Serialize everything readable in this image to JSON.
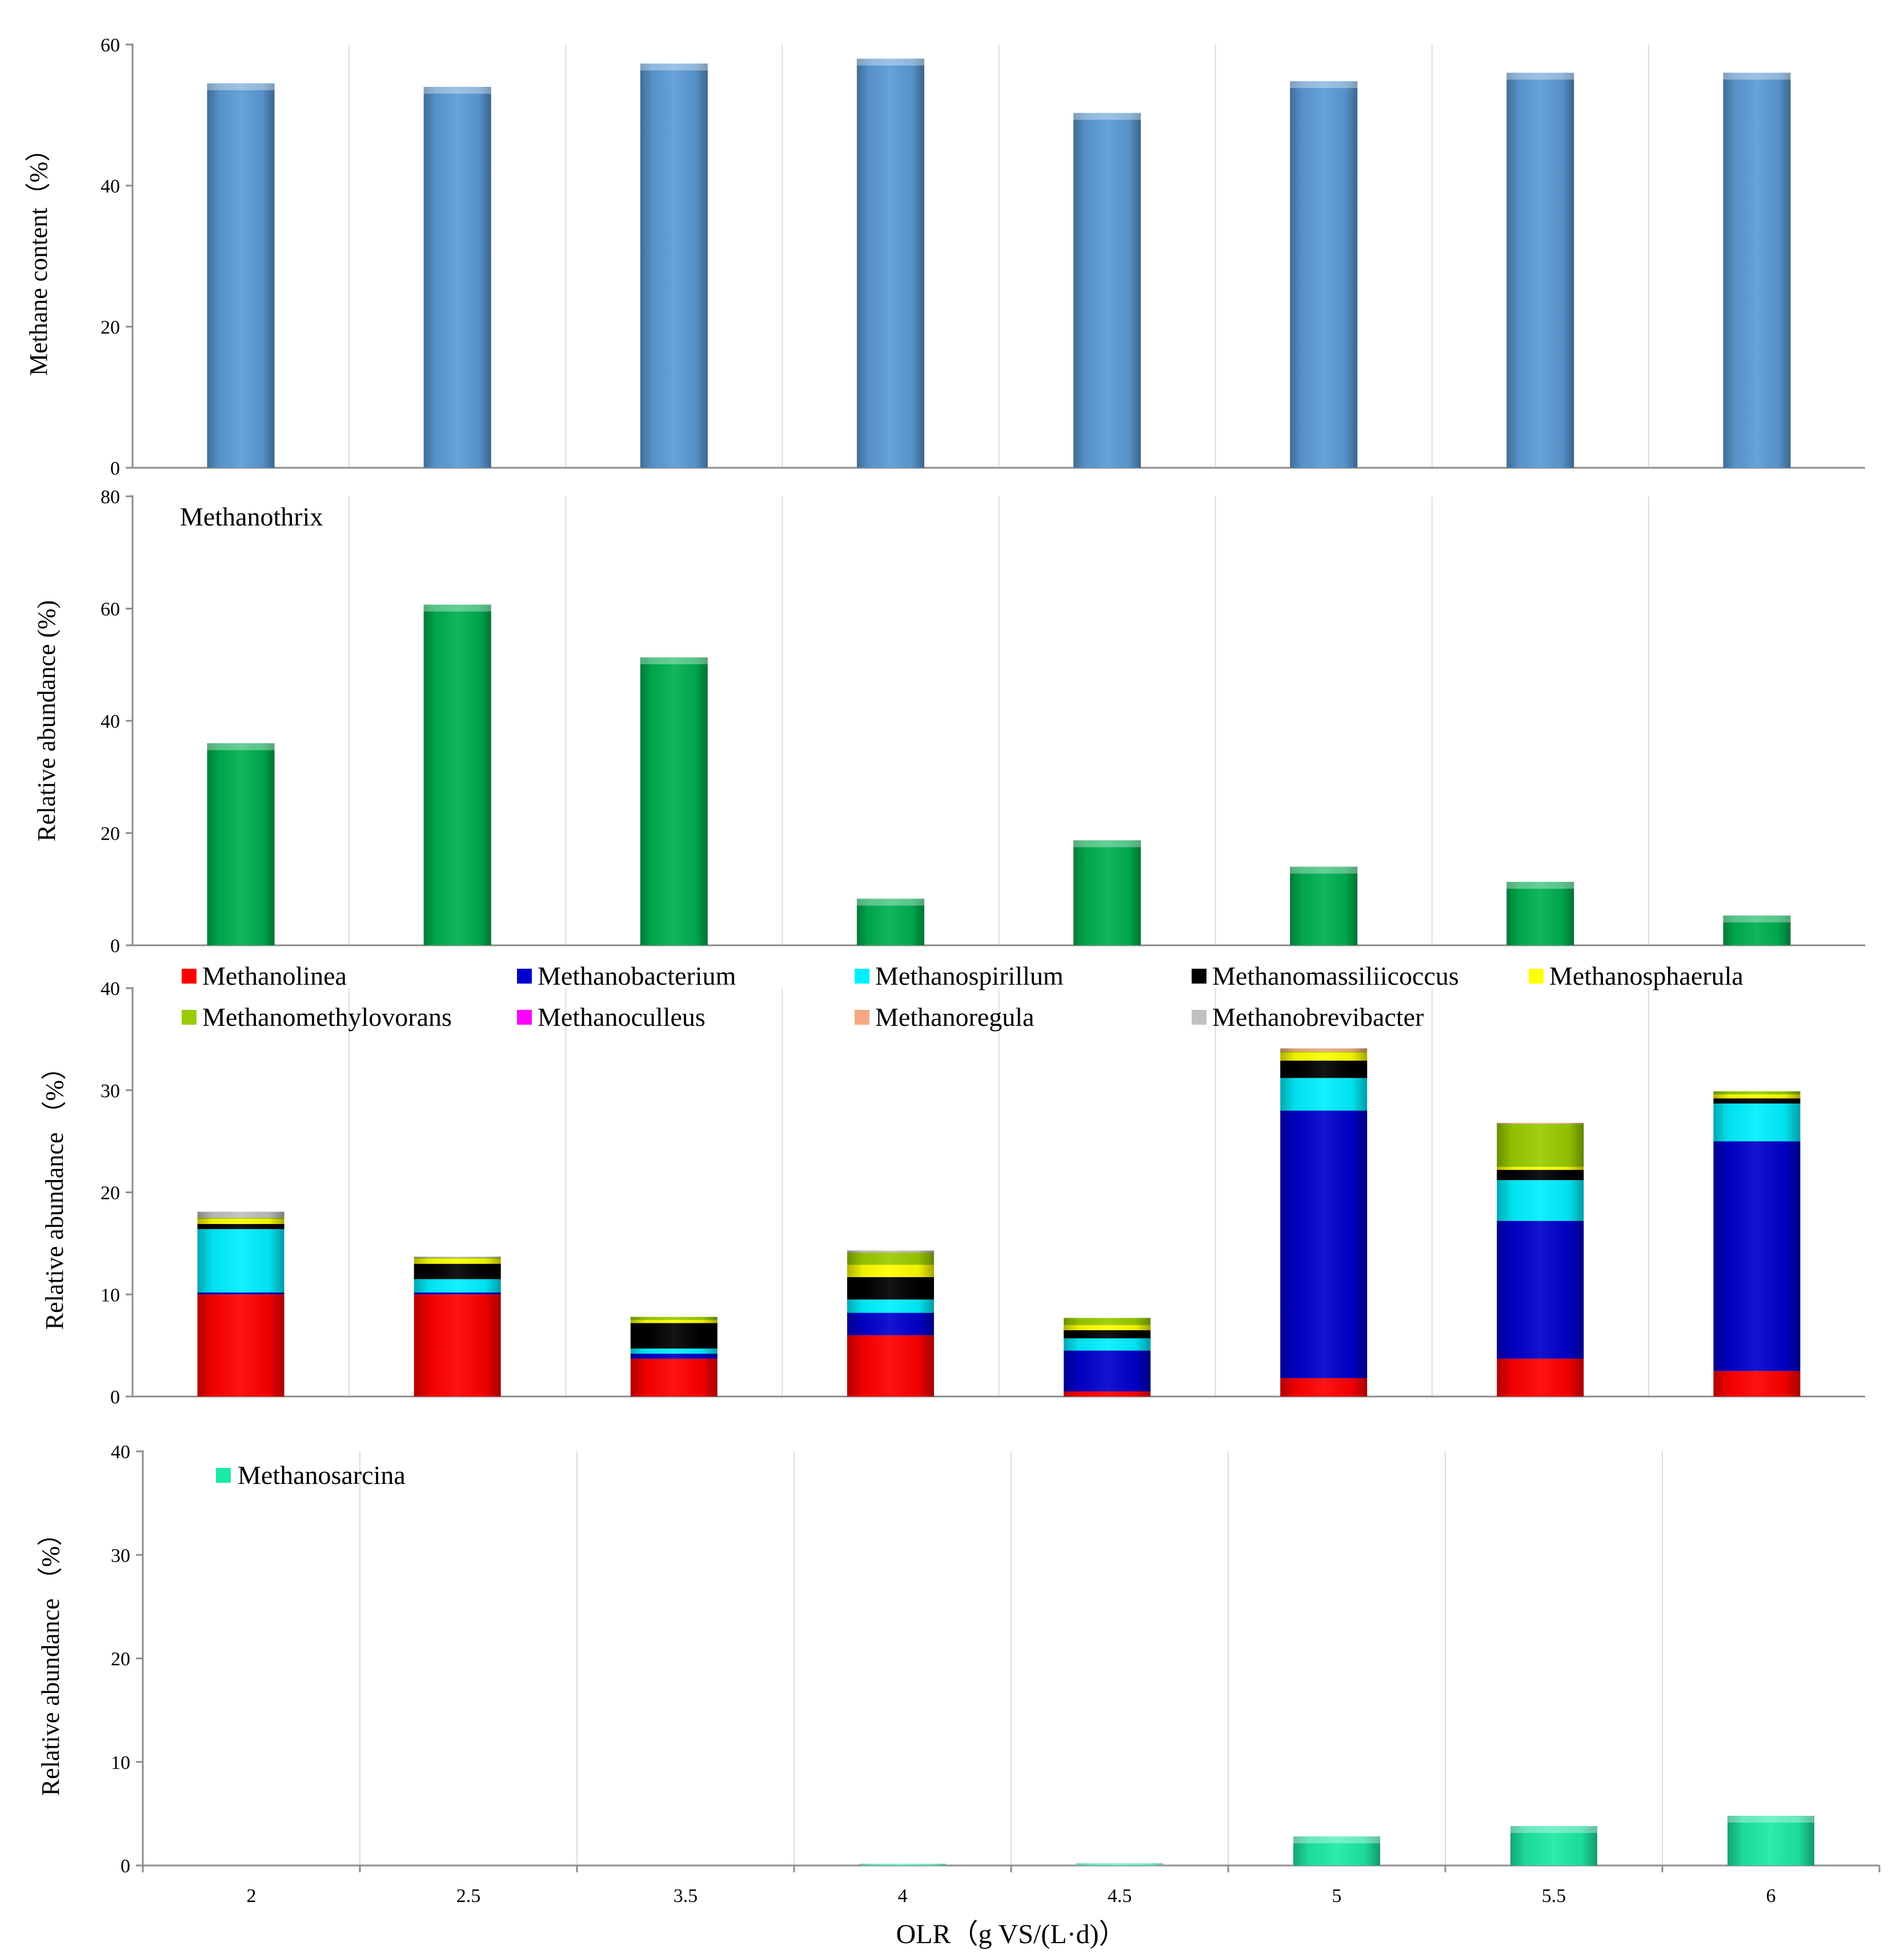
{
  "colors": {
    "Methanolinea": "#ff0000",
    "Methanobacterium": "#0000cc",
    "Methanospirillum": "#00f0ff",
    "Methanomassiliicoccus": "#000000",
    "Methanosphaerula": "#ffff00",
    "Methanomethylovorans": "#99cc00",
    "Methanoculleus": "#ff00ff",
    "Methanoregula": "#f5a882",
    "Methanobrevibacter": "#c0c0c0",
    "Methanothrix": "#00b050",
    "Methanosarcina": "#1de9a6",
    "methane_bar": "#5b9bd5"
  },
  "x_label": "OLR（g VS/(L·d)）",
  "chart_data": [
    {
      "type": "bar",
      "categories": [
        "2",
        "2.5",
        "3.5",
        "4",
        "4.5",
        "5",
        "5.5",
        "6"
      ],
      "ylabel": "Methane content（%）",
      "ylim": [
        0,
        60
      ],
      "yticks": [
        "0",
        "20",
        "40",
        "60"
      ],
      "grid": true,
      "series": [
        {
          "values": [
            54.5,
            54.0,
            57.3,
            58.0,
            50.3,
            54.8,
            56.0,
            56.0
          ]
        }
      ]
    },
    {
      "type": "bar",
      "categories": [
        "2",
        "2.5",
        "3.5",
        "4",
        "4.5",
        "5",
        "5.5",
        "6"
      ],
      "ylabel": "Relative abundance (%)",
      "ylim": [
        0,
        80
      ],
      "yticks": [
        "0",
        "20",
        "40",
        "60",
        "80"
      ],
      "grid": true,
      "annotation": "Methanothrix",
      "series": [
        {
          "name": "Methanothrix",
          "values": [
            36.0,
            60.7,
            51.3,
            8.3,
            18.7,
            14.0,
            11.3,
            5.3
          ]
        }
      ]
    },
    {
      "type": "bar",
      "stacked": true,
      "categories": [
        "2",
        "2.5",
        "3.5",
        "4",
        "4.5",
        "5",
        "5.5",
        "6"
      ],
      "ylabel": "Relative abundance （%）",
      "ylim": [
        0,
        40
      ],
      "yticks": [
        "0",
        "10",
        "20",
        "30",
        "40"
      ],
      "grid": true,
      "legend_position": "top",
      "series": [
        {
          "name": "Methanolinea",
          "values": [
            10.0,
            10.0,
            3.7,
            6.0,
            0.5,
            1.8,
            3.7,
            2.5
          ]
        },
        {
          "name": "Methanobacterium",
          "values": [
            0.2,
            0.2,
            0.5,
            2.2,
            4.0,
            26.2,
            13.5,
            22.5
          ]
        },
        {
          "name": "Methanospirillum",
          "values": [
            6.2,
            1.3,
            0.5,
            1.3,
            1.2,
            3.2,
            4.0,
            3.7
          ]
        },
        {
          "name": "Methanomassiliicoccus",
          "values": [
            0.5,
            1.5,
            2.5,
            2.2,
            0.8,
            1.7,
            1.0,
            0.5
          ]
        },
        {
          "name": "Methanosphaerula",
          "values": [
            0.5,
            0.5,
            0.3,
            1.2,
            0.5,
            0.8,
            0.3,
            0.4
          ]
        },
        {
          "name": "Methanomethylovorans",
          "values": [
            0.1,
            0.1,
            0.3,
            1.2,
            0.7,
            0.1,
            4.2,
            0.3
          ]
        },
        {
          "name": "Methanoculleus",
          "values": [
            0.0,
            0.0,
            0.0,
            0.0,
            0.0,
            0.0,
            0.0,
            0.0
          ]
        },
        {
          "name": "Methanoregula",
          "values": [
            0.0,
            0.0,
            0.0,
            0.0,
            0.0,
            0.3,
            0.1,
            0.0
          ]
        },
        {
          "name": "Methanobrevibacter",
          "values": [
            0.6,
            0.1,
            0.0,
            0.2,
            0.0,
            0.0,
            0.0,
            0.0
          ]
        }
      ]
    },
    {
      "type": "bar",
      "categories": [
        "2",
        "2.5",
        "3.5",
        "4",
        "4.5",
        "5",
        "5.5",
        "6"
      ],
      "ylabel": "Relative abundance （%）",
      "xlabel": "OLR（g VS/(L·d)）",
      "ylim": [
        0,
        40
      ],
      "yticks": [
        "0",
        "10",
        "20",
        "30",
        "40"
      ],
      "grid": true,
      "legend_position": "top-left",
      "series": [
        {
          "name": "Methanosarcina",
          "values": [
            0.0,
            0.0,
            0.0,
            0.1,
            0.2,
            2.8,
            3.8,
            4.8
          ]
        }
      ]
    }
  ]
}
